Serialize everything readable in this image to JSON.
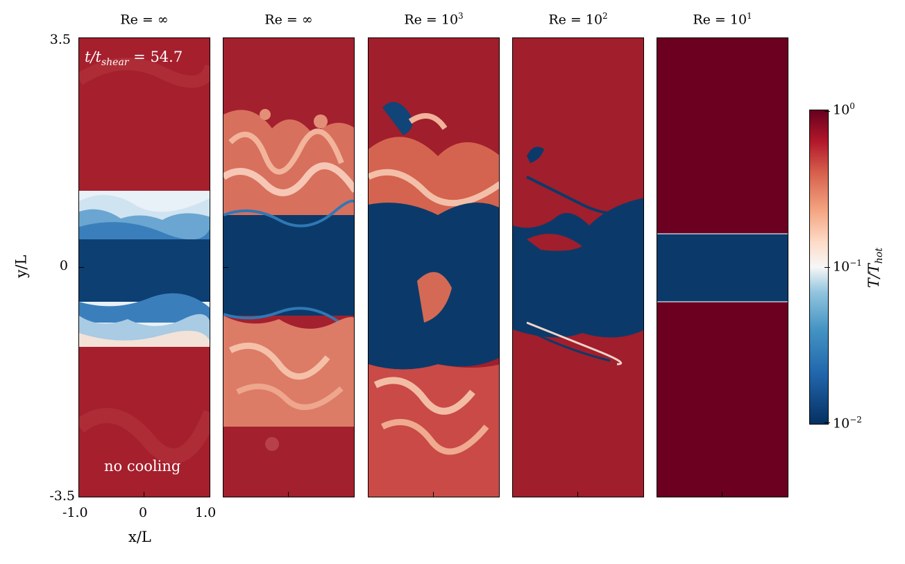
{
  "panels": [
    {
      "title_base": "Re = ∞",
      "title_exp": ""
    },
    {
      "title_base": "Re = ∞",
      "title_exp": ""
    },
    {
      "title_base": "Re = 10",
      "title_exp": "3"
    },
    {
      "title_base": "Re = 10",
      "title_exp": "2"
    },
    {
      "title_base": "Re = 10",
      "title_exp": "1"
    }
  ],
  "annotations": {
    "time_label": "t/t",
    "time_sub": "shear",
    "time_eq": "= 54.7",
    "no_cooling": "no cooling"
  },
  "axes": {
    "ylabel": "y/L",
    "xlabel": "x/L",
    "y_ticks": [
      "3.5",
      "0",
      "-3.5"
    ],
    "x_ticks": [
      "-1.0",
      "0",
      "1.0"
    ]
  },
  "colorbar": {
    "label": "T/T",
    "label_sub": "hot",
    "ticks": [
      {
        "base": "10",
        "exp": "0"
      },
      {
        "base": "10",
        "exp": "−1"
      },
      {
        "base": "10",
        "exp": "−2"
      }
    ],
    "colors": {
      "hot": "#67001f",
      "mid": "#f7f7f7",
      "cold": "#053061"
    }
  }
}
